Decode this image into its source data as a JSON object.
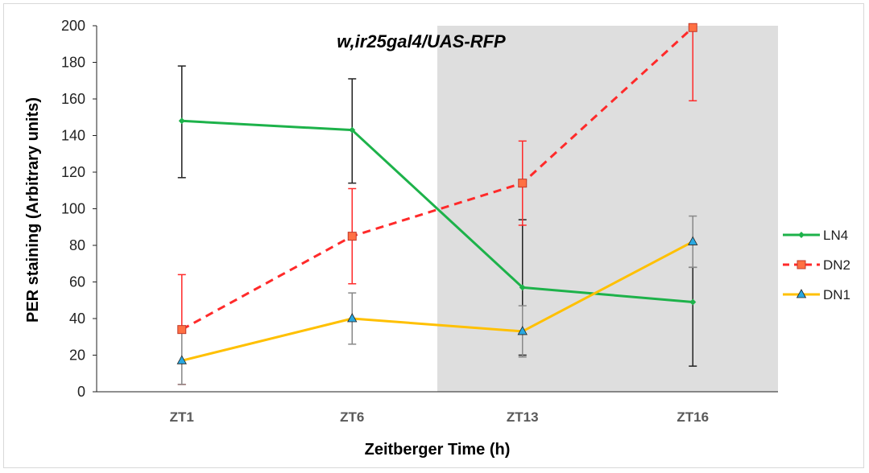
{
  "chart_data": {
    "type": "line",
    "title": "w,ir25gal4/UAS-RFP",
    "xlabel": "Zeitberger Time (h)",
    "ylabel": "PER staining (Arbitrary units)",
    "categories": [
      "ZT1",
      "ZT6",
      "ZT13",
      "ZT16"
    ],
    "ylim": [
      0,
      200
    ],
    "yticks": [
      0,
      20,
      40,
      60,
      80,
      100,
      120,
      140,
      160,
      180,
      200
    ],
    "grid": false,
    "shaded_region": {
      "from_category": "ZT6",
      "to_edge": "right",
      "fraction_start": 0.5,
      "color": "#dedede"
    },
    "legend_position": "right",
    "series": [
      {
        "name": "LN4",
        "color": "#1db24a",
        "dash": "solid",
        "marker": "diamond",
        "values": [
          148,
          143,
          57,
          49
        ],
        "err_upper": [
          178,
          171,
          94,
          68
        ],
        "err_lower": [
          117,
          114,
          20,
          14
        ],
        "err_color": "#222222"
      },
      {
        "name": "DN2",
        "color": "#ff2a2a",
        "dash": "dashed",
        "marker": "square",
        "marker_fill": "#ff7043",
        "values": [
          34,
          85,
          114,
          199
        ],
        "err_upper": [
          64,
          111,
          137,
          199
        ],
        "err_lower": [
          4,
          59,
          91,
          159
        ],
        "err_color": "#ff2a2a"
      },
      {
        "name": "DN1",
        "color": "#ffc000",
        "dash": "solid",
        "marker": "triangle",
        "marker_fill": "#2aa8e0",
        "values": [
          17,
          40,
          33,
          82
        ],
        "err_upper": [
          33,
          54,
          47,
          96
        ],
        "err_lower": [
          4,
          26,
          19,
          68
        ],
        "err_color": "#888888"
      }
    ]
  }
}
